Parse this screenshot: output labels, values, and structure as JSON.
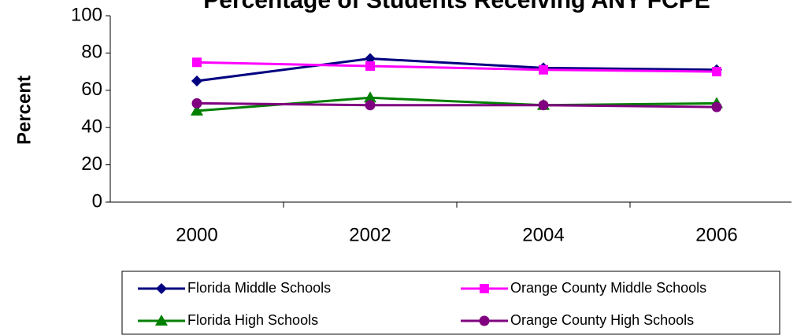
{
  "chart_data": {
    "type": "line",
    "title": "Percentage of Students Receiving ANY FCPE",
    "y_label": "Percent",
    "categories": [
      "2000",
      "2002",
      "2004",
      "2006"
    ],
    "series": [
      {
        "name": "Florida Middle Schools",
        "color": "#000080",
        "marker": "diamond",
        "values": [
          65,
          77,
          72,
          71
        ]
      },
      {
        "name": "Orange County Middle Schools",
        "color": "#ff00ff",
        "marker": "square",
        "values": [
          75,
          73,
          71,
          70
        ]
      },
      {
        "name": "Florida High Schools",
        "color": "#008000",
        "marker": "triangle",
        "values": [
          49,
          56,
          52,
          53
        ]
      },
      {
        "name": "Orange County High Schools",
        "color": "#800080",
        "marker": "circle",
        "values": [
          53,
          52,
          52,
          51
        ]
      }
    ],
    "ylim": [
      0,
      100
    ],
    "yticks": [
      0,
      20,
      40,
      60,
      80,
      100
    ]
  }
}
